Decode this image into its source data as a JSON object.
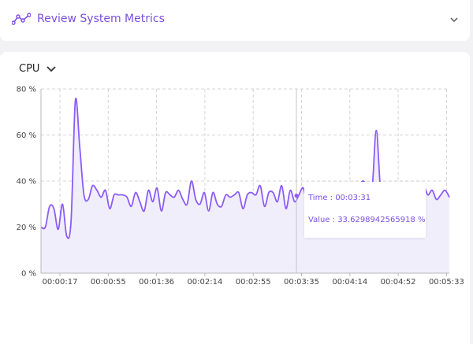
{
  "header": {
    "title": "Review System Metrics",
    "icon": "trend-line-icon",
    "collapse_icon": "chevron-down-icon"
  },
  "metric_selector": {
    "selected": "CPU",
    "icon": "chevron-down-icon"
  },
  "colors": {
    "accent": "#8b5cf6",
    "area_fill": "#f1eefc",
    "grid": "#d4d4d4",
    "title_text": "#7b4fe0"
  },
  "tooltip": {
    "time_label": "Time : 00:03:31",
    "value_label": "Value : 33.6298942565918 %"
  },
  "chart_data": {
    "type": "area",
    "title": "",
    "xlabel": "",
    "ylabel": "",
    "unit": "%",
    "ylim": [
      0,
      80
    ],
    "y_ticks": [
      "0 %",
      "20 %",
      "40 %",
      "60 %",
      "80 %"
    ],
    "x_ticks": [
      "00:00:17",
      "00:00:55",
      "00:01:36",
      "00:02:14",
      "00:02:55",
      "00:03:35",
      "00:04:14",
      "00:04:52",
      "00:05:33"
    ],
    "grid": true,
    "hover": {
      "time": "00:03:31",
      "value": 33.6298942565918
    },
    "series": [
      {
        "values": [
          20,
          20,
          29,
          28,
          19,
          30,
          16,
          23,
          75,
          55,
          34,
          32,
          38,
          36,
          33,
          36,
          28,
          34,
          34,
          34,
          33,
          29,
          35,
          31,
          27,
          36,
          31,
          37,
          27,
          35,
          34,
          33,
          36,
          32,
          30,
          40,
          32,
          30,
          35,
          27,
          35,
          30,
          29,
          34,
          33,
          34,
          35,
          28,
          34,
          35,
          34,
          38,
          29,
          35,
          35,
          31,
          38,
          28,
          36,
          31,
          34,
          37,
          30,
          35,
          34,
          33,
          36,
          36,
          27,
          33,
          34,
          33,
          33,
          36,
          38,
          40,
          37,
          36,
          62,
          36,
          32,
          38,
          34,
          35,
          34,
          33,
          36,
          33,
          35,
          38,
          34,
          36,
          32,
          34,
          36,
          33
        ]
      }
    ]
  }
}
